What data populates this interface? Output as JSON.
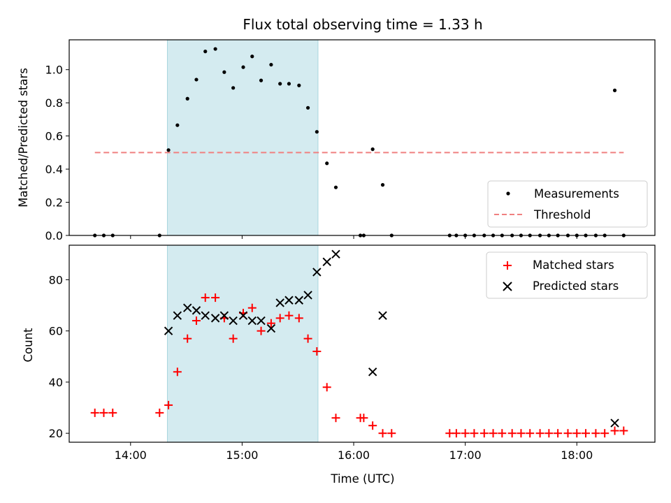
{
  "chart_data": {
    "title": "Flux total observing time = 1.33 h",
    "xlabel": "Time (UTC)",
    "x_ticks": [
      "14:00",
      "15:00",
      "16:00",
      "17:00",
      "18:00"
    ],
    "x_tick_hours": [
      14,
      15,
      16,
      17,
      18
    ],
    "xlim_hours": [
      13.45,
      18.7
    ],
    "highlight_hours": [
      14.33,
      15.68
    ],
    "highlight_color": "#d4ebf0",
    "top": {
      "type": "scatter",
      "ylabel": "Matched/Predicted stars",
      "ylim": [
        0,
        1.18
      ],
      "y_ticks": [
        0.0,
        0.2,
        0.4,
        0.6,
        0.8,
        1.0
      ],
      "y_tick_labels": [
        "0.0",
        "0.2",
        "0.4",
        "0.6",
        "0.8",
        "1.0"
      ],
      "threshold": {
        "name": "Threshold",
        "value": 0.5,
        "x_start_hours": 13.68,
        "x_end_hours": 18.42,
        "color": "#f08080"
      },
      "legend": {
        "placement": "lower-right",
        "entries": [
          "Measurements",
          "Threshold"
        ]
      },
      "series": [
        {
          "name": "Measurements",
          "color": "#000000",
          "x_hours": [
            13.68,
            13.76,
            13.84,
            14.26,
            14.34,
            14.42,
            14.51,
            14.59,
            14.67,
            14.76,
            14.84,
            14.92,
            15.01,
            15.09,
            15.17,
            15.26,
            15.34,
            15.42,
            15.51,
            15.59,
            15.67,
            15.76,
            15.84,
            16.06,
            16.09,
            16.17,
            16.26,
            16.34,
            16.86,
            16.92,
            17.0,
            17.08,
            17.17,
            17.25,
            17.33,
            17.42,
            17.5,
            17.58,
            17.67,
            17.75,
            17.83,
            17.92,
            18.0,
            18.08,
            18.17,
            18.25,
            18.34,
            18.42
          ],
          "values": [
            0.0,
            0.0,
            0.0,
            0.0,
            0.515,
            0.665,
            0.825,
            0.94,
            1.11,
            1.125,
            0.985,
            0.89,
            1.015,
            1.08,
            0.935,
            1.03,
            0.915,
            0.915,
            0.905,
            0.77,
            0.625,
            0.435,
            0.29,
            0.0,
            0.0,
            0.52,
            0.305,
            0.0,
            0.0,
            0.0,
            0.0,
            0.0,
            0.0,
            0.0,
            0.0,
            0.0,
            0.0,
            0.0,
            0.0,
            0.0,
            0.0,
            0.0,
            0.0,
            0.0,
            0.0,
            0.0,
            0.875,
            0.0
          ]
        }
      ]
    },
    "bottom": {
      "type": "scatter",
      "ylabel": "Count",
      "ylim": [
        16.5,
        93.5
      ],
      "y_ticks": [
        20,
        40,
        60,
        80
      ],
      "y_tick_labels": [
        "20",
        "40",
        "60",
        "80"
      ],
      "legend": {
        "placement": "top-right",
        "entries": [
          "Matched stars",
          "Predicted stars"
        ]
      },
      "series": [
        {
          "name": "Matched stars",
          "marker": "plus",
          "color": "#ff0000",
          "x_hours": [
            13.68,
            13.76,
            13.84,
            14.26,
            14.34,
            14.42,
            14.51,
            14.59,
            14.67,
            14.76,
            14.84,
            14.92,
            15.01,
            15.09,
            15.17,
            15.26,
            15.34,
            15.42,
            15.51,
            15.59,
            15.67,
            15.76,
            15.84,
            16.06,
            16.09,
            16.17,
            16.26,
            16.34,
            16.86,
            16.92,
            17.0,
            17.08,
            17.17,
            17.25,
            17.33,
            17.42,
            17.5,
            17.58,
            17.67,
            17.75,
            17.83,
            17.92,
            18.0,
            18.08,
            18.17,
            18.25,
            18.34,
            18.42
          ],
          "values": [
            28,
            28,
            28,
            28,
            31,
            44,
            57,
            64,
            73,
            73,
            65,
            57,
            67,
            69,
            60,
            63,
            65,
            66,
            65,
            57,
            52,
            38,
            26,
            26,
            26,
            23,
            20,
            20,
            20,
            20,
            20,
            20,
            20,
            20,
            20,
            20,
            20,
            20,
            20,
            20,
            20,
            20,
            20,
            20,
            20,
            20,
            21,
            21
          ]
        },
        {
          "name": "Predicted stars",
          "marker": "x",
          "color": "#000000",
          "x_hours": [
            14.34,
            14.42,
            14.51,
            14.59,
            14.67,
            14.76,
            14.84,
            14.92,
            15.01,
            15.09,
            15.17,
            15.26,
            15.34,
            15.42,
            15.51,
            15.59,
            15.67,
            15.76,
            15.84,
            16.17,
            16.26,
            18.34
          ],
          "values": [
            60,
            66,
            69,
            68,
            66,
            65,
            66,
            64,
            66,
            64,
            64,
            61,
            71,
            72,
            72,
            74,
            83,
            87,
            90,
            44,
            66,
            24
          ]
        }
      ]
    }
  }
}
